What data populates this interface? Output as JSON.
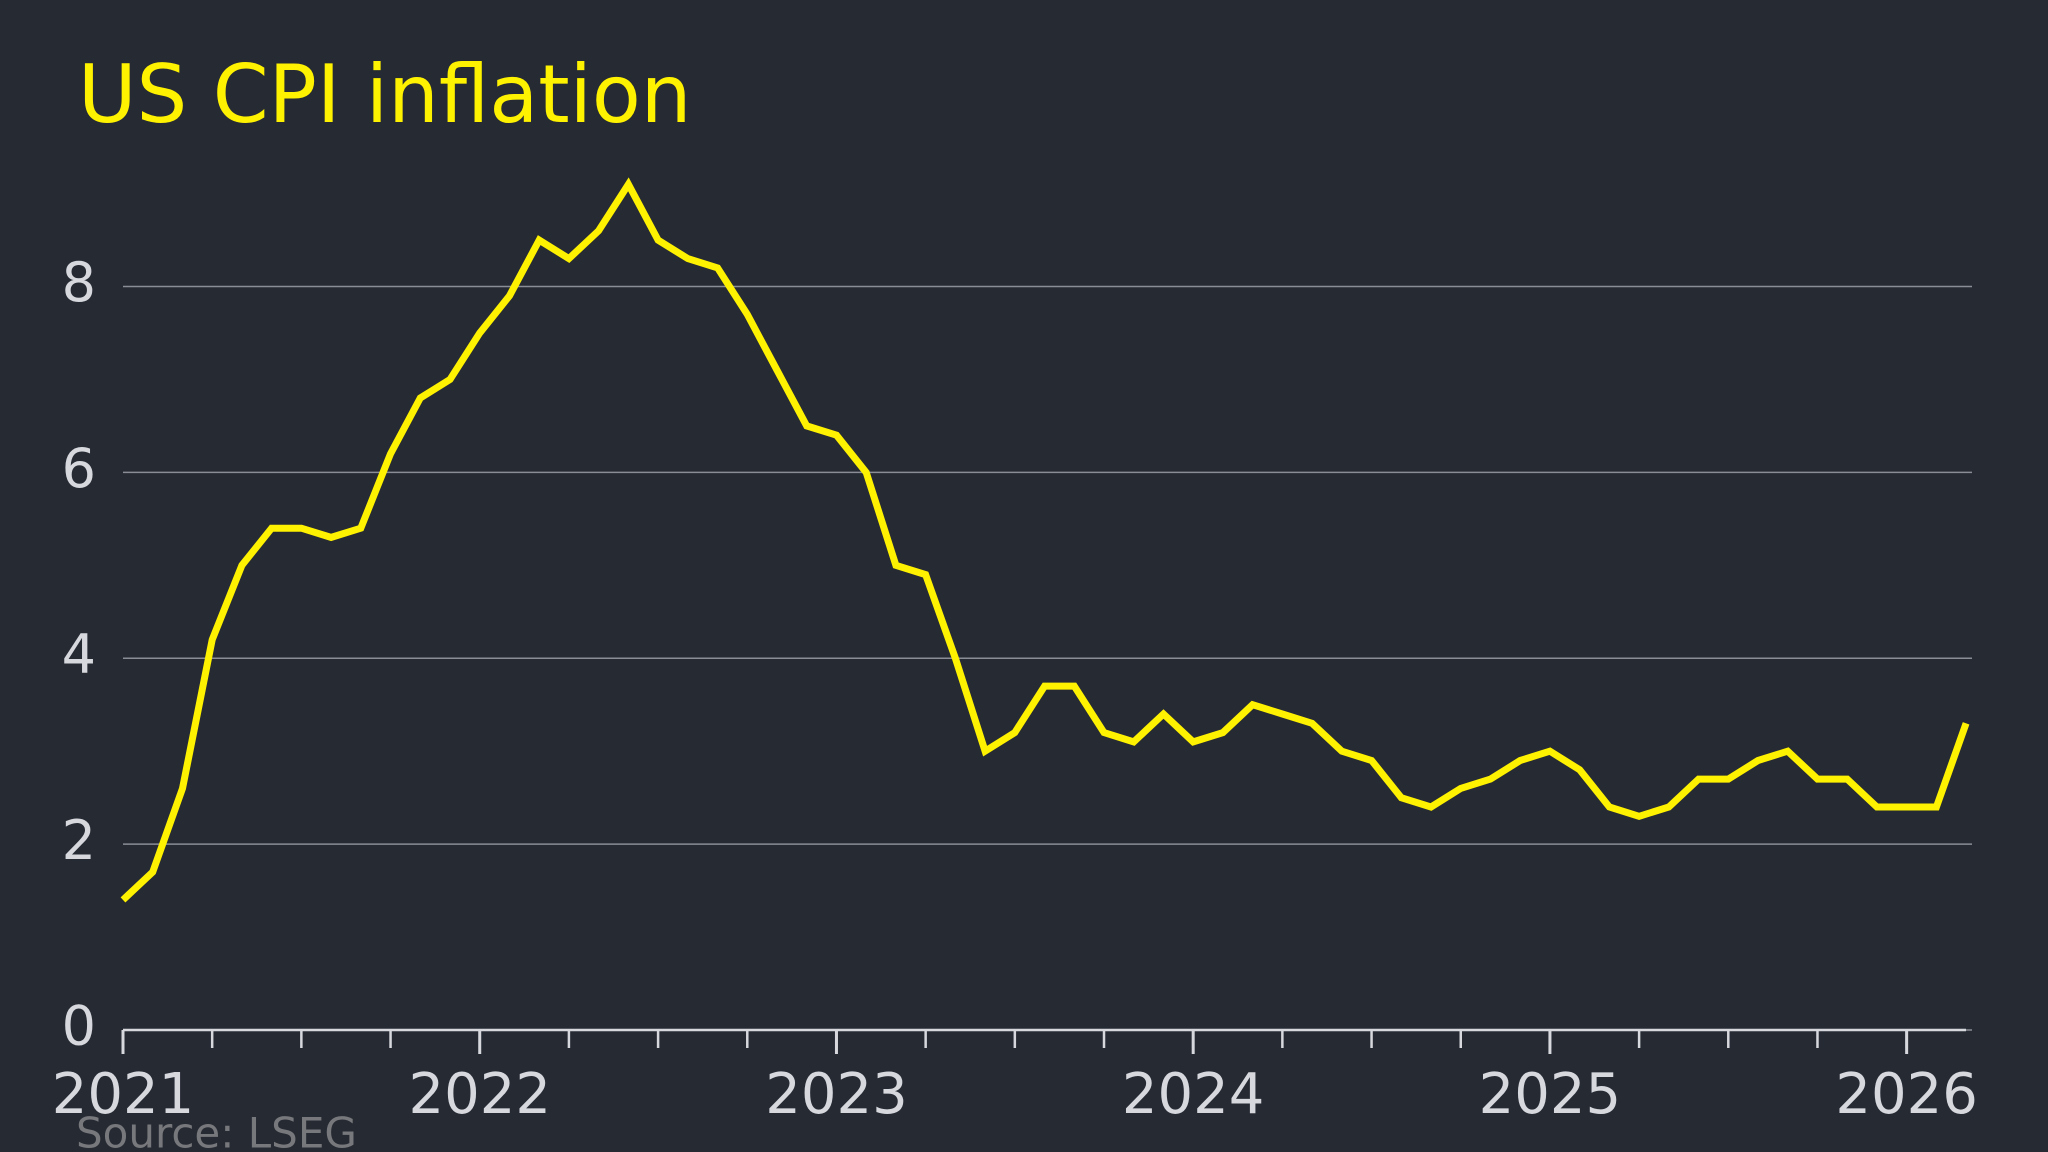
{
  "chart_data": {
    "type": "line",
    "title": "US CPI inflation",
    "source": "Source: LSEG",
    "series": [
      {
        "name": "US CPI inflation",
        "color": "#fff200",
        "values": [
          1.4,
          1.7,
          2.6,
          4.2,
          5.0,
          5.4,
          5.4,
          5.3,
          5.4,
          6.2,
          6.8,
          7.0,
          7.5,
          7.9,
          8.5,
          8.3,
          8.6,
          9.1,
          8.5,
          8.3,
          8.2,
          7.7,
          7.1,
          6.5,
          6.4,
          6.0,
          5.0,
          4.9,
          4.0,
          3.0,
          3.2,
          3.7,
          3.7,
          3.2,
          3.1,
          3.4,
          3.1,
          3.2,
          3.5,
          3.4,
          3.3,
          3.0,
          2.9,
          2.5,
          2.4,
          2.6,
          2.7,
          2.9,
          3.0,
          2.8,
          2.4,
          2.3,
          2.4,
          2.7,
          2.7,
          2.9,
          3.0,
          2.7,
          2.7,
          2.4,
          2.4,
          2.4,
          3.3
        ]
      }
    ],
    "xlim": [
      2021,
      2026.2
    ],
    "xticks": [
      2021,
      2022,
      2023,
      2024,
      2025,
      2026
    ],
    "ylim": [
      0,
      9.2
    ],
    "yticks": [
      0,
      2,
      4,
      6,
      8
    ],
    "grid": true
  }
}
